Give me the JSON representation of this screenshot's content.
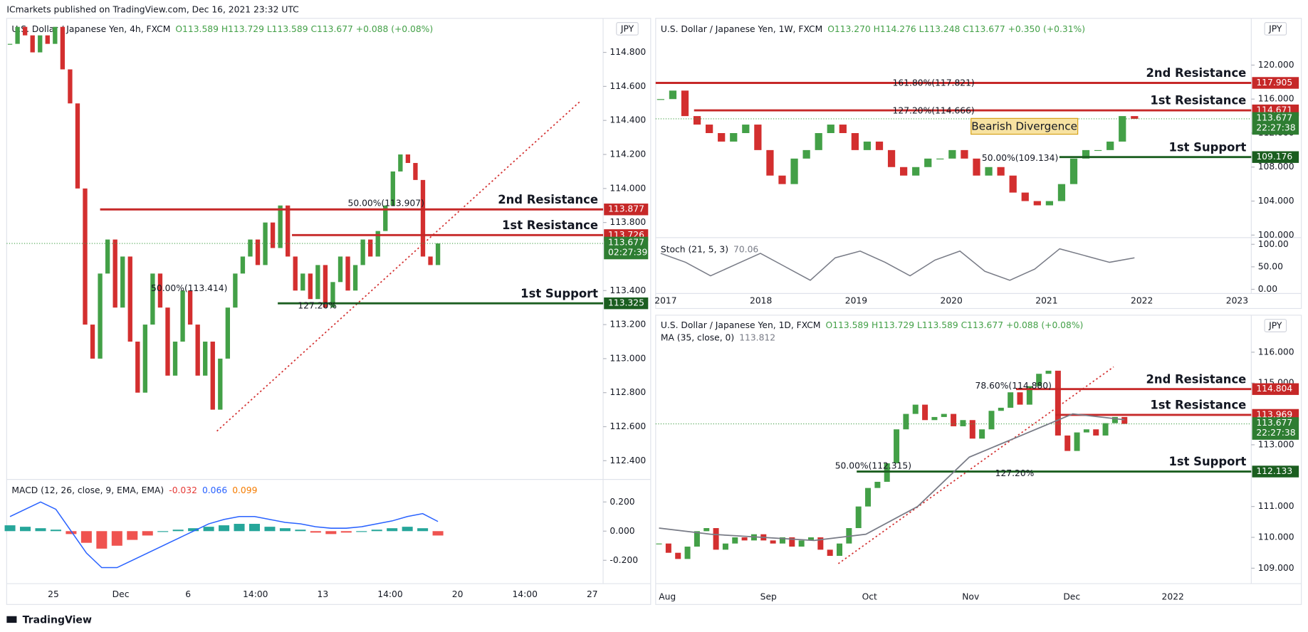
{
  "header": "ICmarkets published on TradingView.com, Dec 16, 2021 23:32 UTC",
  "footer": "TradingView",
  "up_color": "#43a047",
  "down_color": "#d32f2f",
  "panels": [
    {
      "symbol": "U.S. Dollar / Japanese Yen, 4h, FXCM",
      "ohlc": "O113.589 H113.729 L113.589 C113.677 +0.088 (+0.08%)",
      "currency": "JPY",
      "ylim": [
        112.29,
        115.0
      ],
      "price_ticks": [
        {
          "value": 114.8,
          "label": "114.800"
        },
        {
          "value": 114.6,
          "label": "114.600"
        },
        {
          "value": 114.4,
          "label": "114.400"
        },
        {
          "value": 114.2,
          "label": "114.200"
        },
        {
          "value": 114.0,
          "label": "114.000"
        },
        {
          "value": 113.8,
          "label": "113.800"
        },
        {
          "value": 113.4,
          "label": "113.400"
        },
        {
          "value": 113.2,
          "label": "113.200"
        },
        {
          "value": 113.0,
          "label": "113.000"
        },
        {
          "value": 112.8,
          "label": "112.800"
        },
        {
          "value": 112.6,
          "label": "112.600"
        },
        {
          "value": 112.4,
          "label": "112.400"
        }
      ],
      "time_labels": [
        "25",
        "Dec",
        "6",
        "14:00",
        "13",
        "14:00",
        "20",
        "14:00",
        "27"
      ],
      "levels": [
        {
          "name": "2nd Resistance",
          "value": 113.877,
          "color": "#c62828"
        },
        {
          "name": "1st Resistance",
          "value": 113.726,
          "color": "#c62828"
        },
        {
          "name": "1st Support",
          "value": 113.325,
          "color": "#1b5e20"
        }
      ],
      "last": {
        "value": 113.677,
        "countdown": "02:27:39"
      },
      "fib_labels": [
        "50.00%(113.907)",
        "50.00%(113.414)",
        "127.20%"
      ],
      "closes": [
        114.85,
        114.95,
        114.9,
        114.8,
        114.9,
        114.85,
        114.95,
        114.7,
        114.5,
        114.0,
        113.2,
        113.0,
        113.5,
        113.7,
        113.3,
        113.6,
        113.1,
        112.8,
        113.2,
        113.5,
        113.3,
        112.9,
        113.1,
        113.4,
        113.2,
        112.9,
        113.1,
        112.7,
        113.0,
        113.3,
        113.5,
        113.6,
        113.7,
        113.55,
        113.8,
        113.65,
        113.9,
        113.6,
        113.4,
        113.5,
        113.35,
        113.55,
        113.3,
        113.45,
        113.6,
        113.4,
        113.55,
        113.7,
        113.6,
        113.75,
        113.9,
        114.1,
        114.2,
        114.15,
        114.05,
        113.6,
        113.55,
        113.677
      ],
      "sub": {
        "kind": "macd",
        "name": "MACD (12, 26, close, 9, EMA, EMA)",
        "readings": [
          {
            "text": "-0.032",
            "color": "#e53935"
          },
          {
            "text": "0.066",
            "color": "#2962ff"
          },
          {
            "text": "0.099",
            "color": "#f57c00"
          }
        ],
        "ylim": [
          -0.36,
          0.326
        ],
        "ticks": [
          {
            "value": 0.2,
            "label": "0.200"
          },
          {
            "value": 0,
            "label": "0.000"
          },
          {
            "value": -0.2,
            "label": "-0.200"
          }
        ],
        "hist": [
          0.04,
          0.03,
          0.02,
          0.01,
          -0.02,
          -0.08,
          -0.12,
          -0.1,
          -0.06,
          -0.03,
          0.0,
          0.01,
          0.02,
          0.03,
          0.04,
          0.05,
          0.05,
          0.03,
          0.02,
          0.01,
          -0.01,
          -0.02,
          -0.01,
          0.0,
          0.01,
          0.02,
          0.03,
          0.02,
          -0.03
        ],
        "line": [
          0.1,
          0.15,
          0.2,
          0.15,
          0.0,
          -0.15,
          -0.25,
          -0.25,
          -0.2,
          -0.15,
          -0.1,
          -0.05,
          0.0,
          0.05,
          0.08,
          0.1,
          0.1,
          0.08,
          0.06,
          0.05,
          0.03,
          0.02,
          0.02,
          0.03,
          0.05,
          0.07,
          0.1,
          0.12,
          0.066
        ]
      }
    },
    {
      "symbol": "U.S. Dollar / Japanese Yen, 1W, FXCM",
      "ohlc": "O113.270 H114.276 L113.248 C113.677 +0.350 (+0.31%)",
      "currency": "JPY",
      "ylim": [
        99.7,
        125.5
      ],
      "price_ticks": [
        {
          "value": 120,
          "label": "120.000"
        },
        {
          "value": 116,
          "label": "116.000"
        },
        {
          "value": 112,
          "label": "112.000"
        },
        {
          "value": 108,
          "label": "108.000"
        },
        {
          "value": 104,
          "label": "104.000"
        },
        {
          "value": 100,
          "label": "100.000"
        }
      ],
      "time_labels": [
        "2017",
        "2018",
        "2019",
        "2020",
        "2021",
        "2022",
        "2023"
      ],
      "levels": [
        {
          "name": "2nd Resistance",
          "value": 117.905,
          "color": "#c62828"
        },
        {
          "name": "1st Resistance",
          "value": 114.671,
          "color": "#c62828"
        },
        {
          "name": "1st Support",
          "value": 109.176,
          "color": "#1b5e20"
        }
      ],
      "last": {
        "value": 113.677,
        "countdown": "22:27:38"
      },
      "fib_labels": [
        "161.80%(117.821)",
        "127.20%(114.666)",
        "50.00%(109.134)"
      ],
      "annotation": "Bearish Divergence",
      "closes": [
        116,
        117,
        114,
        113,
        112,
        111,
        112,
        113,
        110,
        107,
        106,
        109,
        110,
        112,
        113,
        112,
        110,
        111,
        110,
        108,
        107,
        108,
        109,
        109,
        110,
        109,
        107,
        108,
        107,
        105,
        104,
        103.5,
        104,
        106,
        109,
        110,
        110,
        111,
        114,
        113.677
      ],
      "sub": {
        "kind": "stoch",
        "name": "Stoch (21, 5, 3)",
        "readings": [
          {
            "text": "70.06",
            "color": "#787b86"
          }
        ],
        "ylim": [
          -9.3,
          109.3
        ],
        "ticks": [
          {
            "value": 100,
            "label": "100.00"
          },
          {
            "value": 50,
            "label": "50.00"
          },
          {
            "value": 0,
            "label": "0.00"
          }
        ],
        "line": [
          80,
          60,
          30,
          55,
          80,
          50,
          20,
          70,
          85,
          60,
          30,
          65,
          85,
          40,
          20,
          45,
          90,
          75,
          60,
          70.06
        ]
      }
    },
    {
      "symbol": "U.S. Dollar / Japanese Yen, 1D, FXCM",
      "ohlc": "O113.589 H113.729 L113.589 C113.677 +0.088 (+0.08%)",
      "currency": "JPY",
      "ylim": [
        108.5,
        117.2
      ],
      "price_ticks": [
        {
          "value": 116,
          "label": "116.000"
        },
        {
          "value": 115,
          "label": "115.000"
        },
        {
          "value": 113,
          "label": "113.000"
        },
        {
          "value": 111,
          "label": "111.000"
        },
        {
          "value": 110,
          "label": "110.000"
        },
        {
          "value": 109,
          "label": "109.000"
        }
      ],
      "time_labels": [
        "Aug",
        "Sep",
        "Oct",
        "Nov",
        "Dec",
        "2022"
      ],
      "levels": [
        {
          "name": "2nd Resistance",
          "value": 114.804,
          "color": "#c62828"
        },
        {
          "name": "1st Resistance",
          "value": 113.969,
          "color": "#c62828"
        },
        {
          "name": "1st Support",
          "value": 112.133,
          "color": "#1b5e20"
        }
      ],
      "last": {
        "value": 113.677,
        "countdown": "22:27:38"
      },
      "fib_labels": [
        "78.60%(114.880)",
        "50.00%(112.315)",
        "127.20%"
      ],
      "ma": {
        "name": "MA (35, close, 0)",
        "reading": "113.812",
        "values": [
          110.3,
          110.1,
          110.0,
          109.9,
          110.1,
          111.0,
          112.6,
          113.3,
          114.0,
          113.812
        ]
      },
      "closes": [
        109.8,
        109.5,
        109.3,
        109.7,
        110.2,
        110.3,
        109.6,
        109.8,
        110.0,
        109.9,
        110.1,
        109.9,
        109.8,
        110.0,
        109.7,
        109.9,
        110.0,
        109.6,
        109.4,
        109.8,
        110.3,
        111.0,
        111.6,
        111.8,
        112.4,
        113.5,
        114.0,
        114.3,
        113.8,
        113.9,
        114.0,
        113.6,
        113.8,
        113.2,
        113.5,
        114.1,
        114.2,
        114.7,
        114.3,
        114.9,
        115.3,
        115.4,
        113.3,
        112.8,
        113.4,
        113.5,
        113.3,
        113.7,
        113.9,
        113.677
      ]
    }
  ]
}
